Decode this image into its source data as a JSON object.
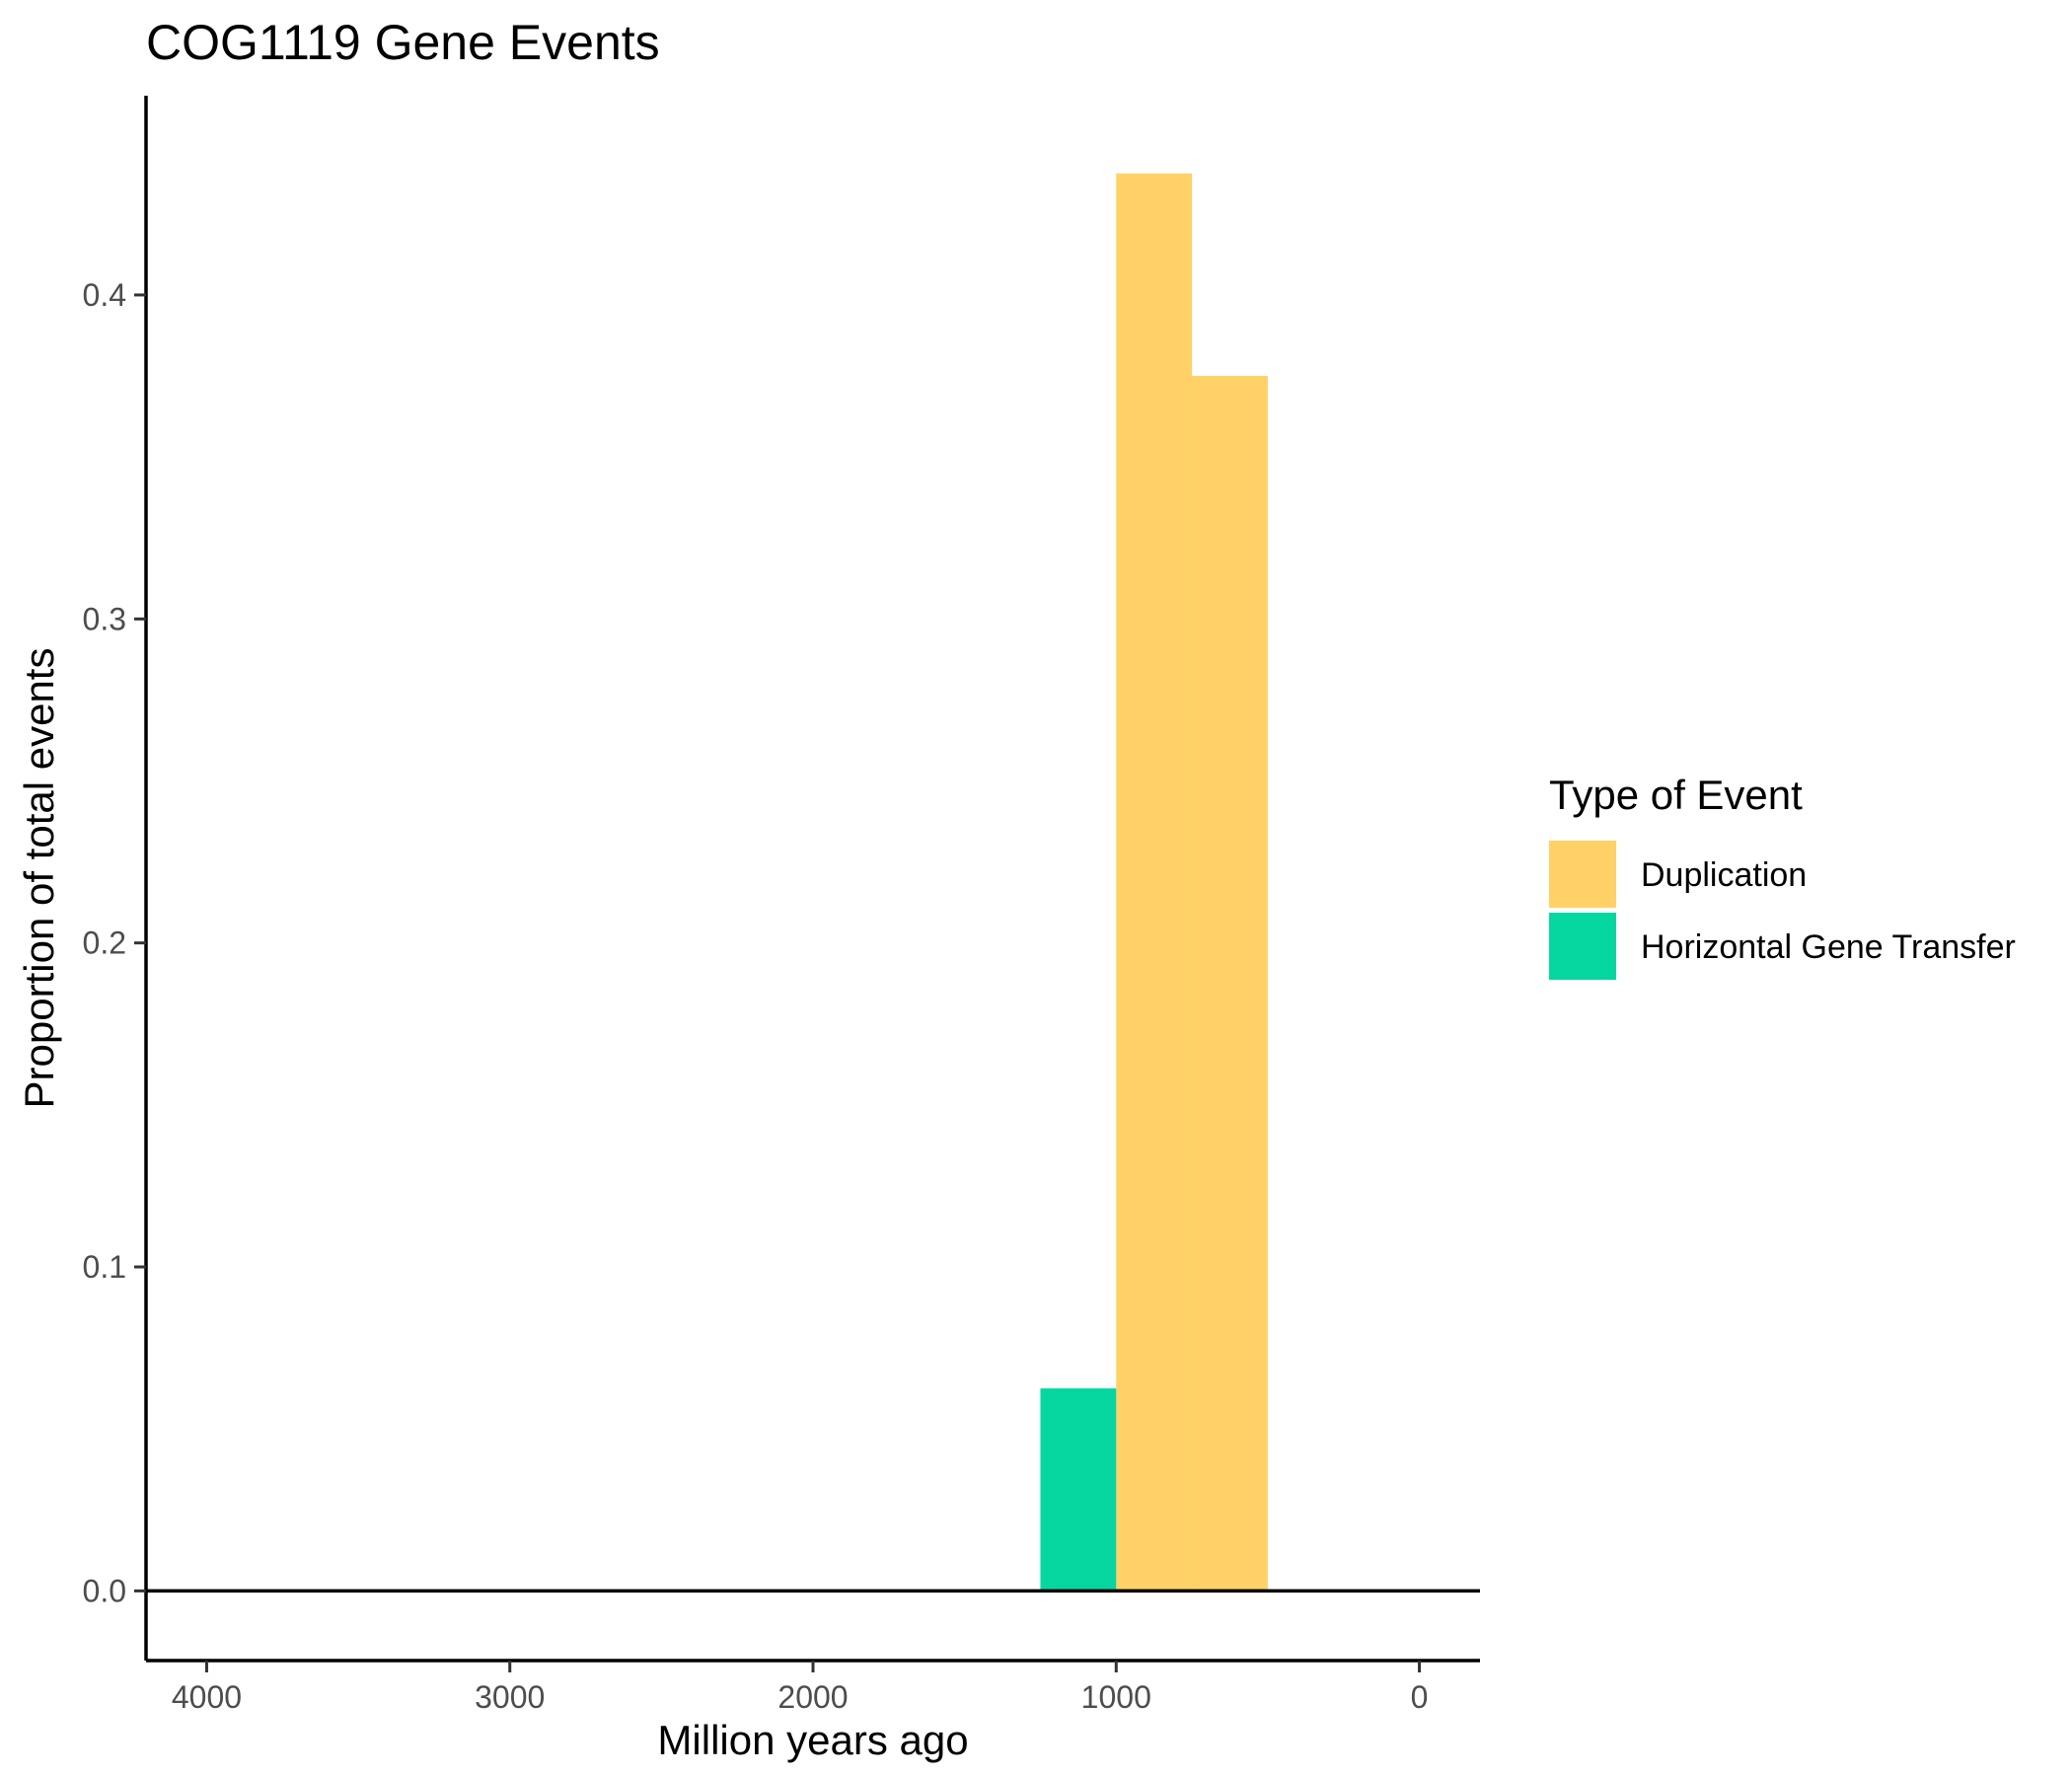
{
  "chart_data": {
    "type": "bar",
    "title": "COG1119 Gene Events",
    "xlabel": "Million years ago",
    "ylabel": "Proportion of total events",
    "x_reversed": true,
    "xlim": [
      4200,
      -200
    ],
    "ylim": [
      -0.0215,
      0.4615
    ],
    "xticks": [
      4000,
      3000,
      2000,
      1000,
      0
    ],
    "xtick_labels": [
      "4000",
      "3000",
      "2000",
      "1000",
      "0"
    ],
    "yticks": [
      0.0,
      0.1,
      0.2,
      0.3,
      0.4
    ],
    "ytick_labels": [
      "0.0",
      "0.1",
      "0.2",
      "0.3",
      "0.4"
    ],
    "bin_width": 250,
    "series": [
      {
        "name": "Duplication",
        "color": "#FFD166",
        "bins": [
          {
            "x_start": 1000,
            "x_end": 750,
            "value": 0.4375
          },
          {
            "x_start": 750,
            "x_end": 500,
            "value": 0.375
          }
        ]
      },
      {
        "name": "Horizontal Gene Transfer",
        "color": "#06D6A0",
        "bins": [
          {
            "x_start": 1250,
            "x_end": 1000,
            "value": 0.0625
          }
        ]
      }
    ],
    "legend": {
      "title": "Type of Event",
      "position": "right"
    },
    "grid": false
  }
}
